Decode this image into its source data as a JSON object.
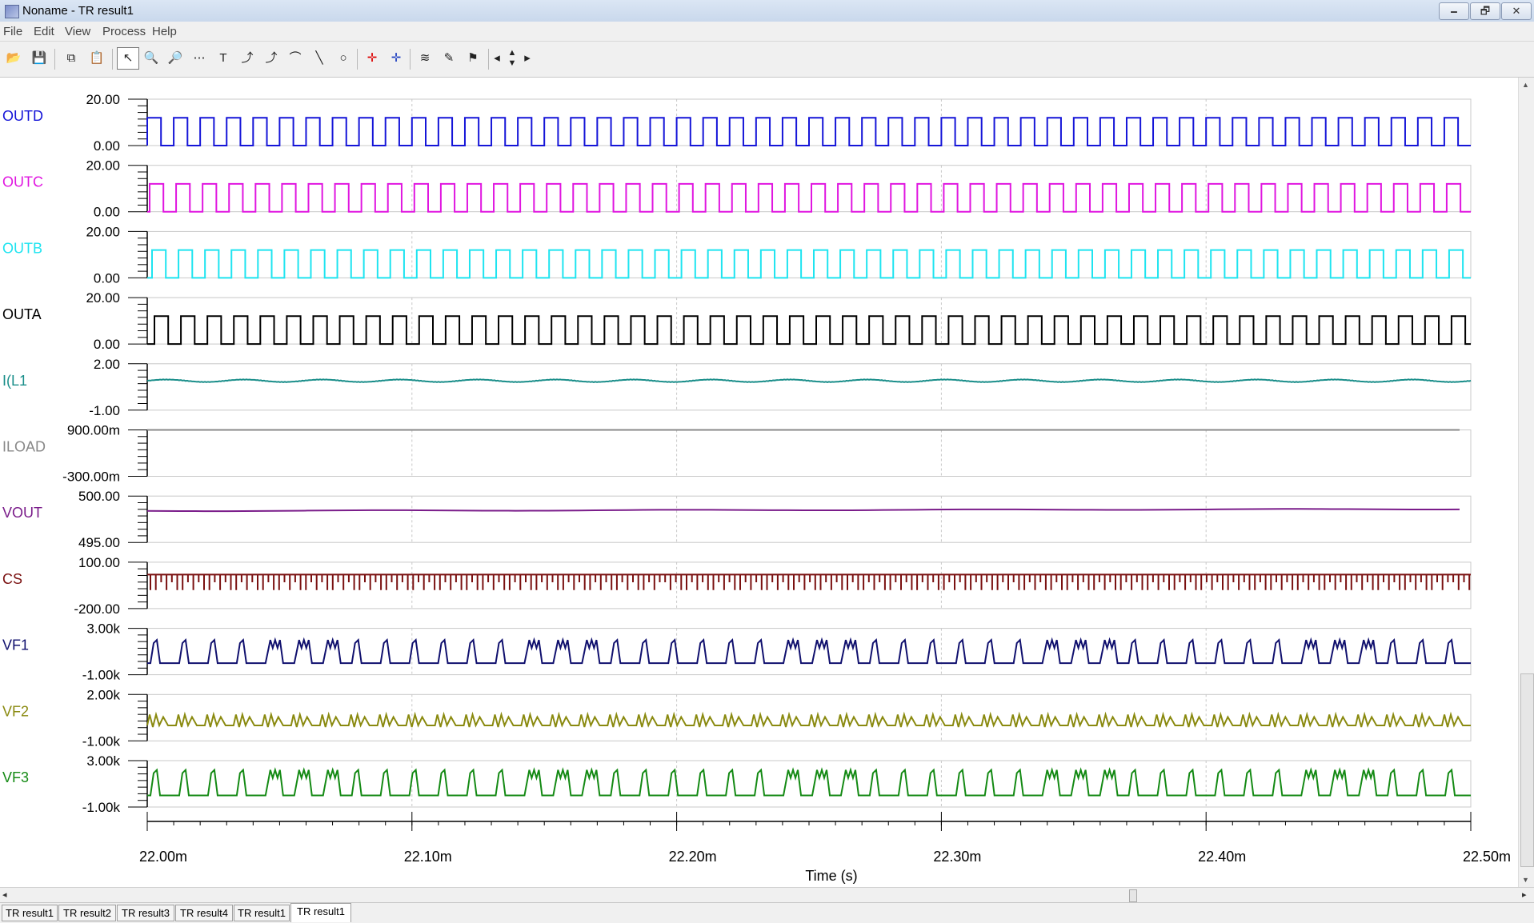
{
  "window": {
    "title": "Noname - TR result1",
    "minimize": "🗕",
    "restore": "🗗",
    "close": "✕"
  },
  "menu": [
    "File",
    "Edit",
    "View",
    "Process",
    "Help"
  ],
  "toolbar": [
    "open-folder-icon",
    "save-icon",
    "copy-icon",
    "paste-icon",
    "select-arrow-icon",
    "zoom-in-icon",
    "zoom-extent-icon",
    "grid-icon",
    "text-tool-icon",
    "cursor-a-icon",
    "cursor-b-icon",
    "slope-icon",
    "line-tool-icon",
    "circle-tool-icon",
    "marker-red-icon",
    "marker-blue-icon",
    "curve-add-icon",
    "curve-edit-icon",
    "flag-icon",
    "pan-left-icon",
    "pan-updown-icon",
    "pan-right-icon"
  ],
  "chart_data": {
    "type": "line",
    "xlabel": "Time (s)",
    "xlim": [
      22.0,
      22.5
    ],
    "x_tick_labels": [
      "22.00m",
      "22.10m",
      "22.20m",
      "22.30m",
      "22.40m",
      "22.50m"
    ],
    "grid": true,
    "series": [
      {
        "name": "OUTD",
        "color": "#1515d8",
        "ylim": [
          0,
          20
        ],
        "tick_labels": [
          "20.00",
          "0.00"
        ],
        "waveform": "square",
        "low": 0,
        "high": 12,
        "period_ms": 0.02
      },
      {
        "name": "OUTC",
        "color": "#e016e0",
        "ylim": [
          0,
          20
        ],
        "tick_labels": [
          "20.00",
          "0.00"
        ],
        "waveform": "square",
        "low": 0,
        "high": 12,
        "period_ms": 0.02
      },
      {
        "name": "OUTB",
        "color": "#1ee4f0",
        "ylim": [
          0,
          20
        ],
        "tick_labels": [
          "20.00",
          "0.00"
        ],
        "waveform": "square",
        "low": 0,
        "high": 12,
        "period_ms": 0.02
      },
      {
        "name": "OUTA",
        "color": "#000000",
        "ylim": [
          0,
          20
        ],
        "tick_labels": [
          "20.00",
          "0.00"
        ],
        "waveform": "square",
        "low": 0,
        "high": 12,
        "period_ms": 0.02
      },
      {
        "name": "I(L1",
        "color": "#1a8e8a",
        "ylim": [
          -1,
          2
        ],
        "tick_labels": [
          "2.00",
          "-1.00"
        ],
        "waveform": "ripple",
        "mean": 0.9,
        "amplitude": 0.08
      },
      {
        "name": "ILOAD",
        "color": "#888888",
        "ylim": [
          -300,
          900
        ],
        "tick_labels": [
          "900.00m",
          "-300.00m"
        ],
        "waveform": "flat",
        "mean": 900
      },
      {
        "name": "VOUT",
        "color": "#7a1c8a",
        "ylim": [
          495,
          500
        ],
        "tick_labels": [
          "500.00",
          "495.00"
        ],
        "waveform": "flat",
        "mean": 498.4
      },
      {
        "name": "CS",
        "color": "#7a1010",
        "ylim": [
          -200,
          100
        ],
        "tick_labels": [
          "100.00",
          "-200.00"
        ],
        "waveform": "spikes",
        "mean": 20,
        "low": -80
      },
      {
        "name": "VF1",
        "color": "#10106e",
        "ylim": [
          -1000,
          3000
        ],
        "tick_labels": [
          "3.00k",
          "-1.00k"
        ],
        "waveform": "pulses",
        "low": 0,
        "high": 2000
      },
      {
        "name": "VF2",
        "color": "#8a8a10",
        "ylim": [
          -1000,
          2000
        ],
        "tick_labels": [
          "2.00k",
          "-1.00k"
        ],
        "waveform": "zigzag",
        "low": 0,
        "high": 700
      },
      {
        "name": "VF3",
        "color": "#148a14",
        "ylim": [
          -1000,
          3000
        ],
        "tick_labels": [
          "3.00k",
          "-1.00k"
        ],
        "waveform": "pulses",
        "low": 0,
        "high": 2200
      }
    ]
  },
  "tabs": [
    "TR result1",
    "TR result2",
    "TR result3",
    "TR result4",
    "TR result1",
    "TR result1"
  ],
  "active_tab": 5
}
